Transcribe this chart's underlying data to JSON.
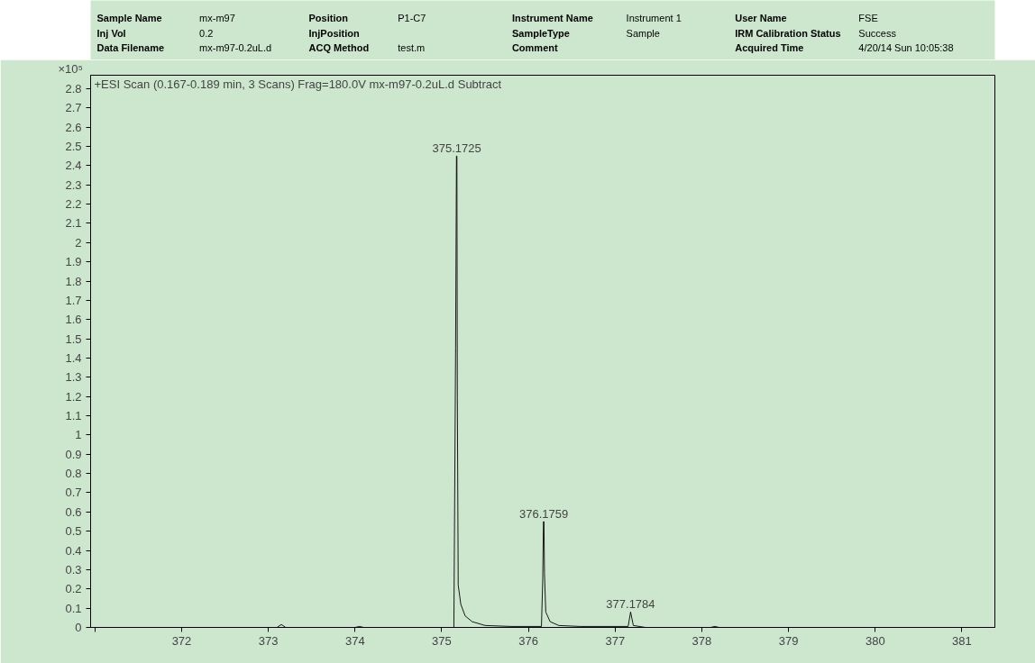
{
  "chart_data": {
    "type": "line",
    "title": "+ESI Scan (0.167-0.189 min, 3 Scans) Frag=180.0V mx-m97-0.2uL.d  Subtract",
    "ylabel": "×10⁵",
    "x": [
      370.95,
      373.1,
      373.15,
      373.2,
      374.0,
      374.05,
      374.1,
      375.14,
      375.16,
      375.17,
      375.1725,
      375.175,
      375.18,
      375.19,
      375.22,
      375.27,
      375.35,
      375.5,
      375.8,
      376.15,
      376.165,
      376.173,
      376.1759,
      376.179,
      376.185,
      376.2,
      376.25,
      376.35,
      376.6,
      377.15,
      377.1784,
      377.21,
      377.35,
      378.1,
      378.15,
      378.2,
      381.38
    ],
    "series": [
      {
        "color": "#000000",
        "values": [
          0,
          0,
          0.015,
          0,
          0,
          0.005,
          0,
          0,
          1.45,
          2.45,
          2.45,
          2.45,
          1.2,
          0.22,
          0.12,
          0.06,
          0.03,
          0.01,
          0.005,
          0.005,
          0.25,
          0.55,
          0.55,
          0.55,
          0.28,
          0.08,
          0.03,
          0.01,
          0.005,
          0.005,
          0.08,
          0.01,
          0,
          0,
          0.005,
          0,
          0
        ]
      }
    ],
    "xlim": [
      370.95,
      381.38
    ],
    "xticks": [
      {
        "value": 371,
        "label": null
      },
      372,
      373,
      374,
      375,
      376,
      377,
      378,
      379,
      380,
      381
    ],
    "ylim": [
      0,
      2.87
    ],
    "yticks": [
      0,
      0.1,
      0.2,
      0.3,
      0.4,
      0.5,
      0.6,
      0.7,
      0.8,
      0.9,
      1,
      1.1,
      1.2,
      1.3,
      1.4,
      1.5,
      1.6,
      1.7,
      1.8,
      1.9,
      2,
      2.1,
      2.2,
      2.3,
      2.4,
      2.5,
      2.6,
      2.7,
      2.8
    ],
    "grid": false,
    "marker": "none",
    "line_style": "solid",
    "annotations": [
      "Sample Name",
      "mx-m97",
      "Position",
      "P1-C7",
      "Instrument Name",
      "Instrument 1",
      "User Name",
      "FSE",
      "Inj Vol",
      "0.2",
      "InjPosition",
      "SampleType",
      "Sample",
      "IRM Calibration Status",
      "Success",
      "Data Filename",
      "mx-m97-0.2uL.d",
      "ACQ Method",
      "test.m",
      "Comment",
      "Acquired Time",
      "4/20/14 Sun 10:05:38",
      {
        "text": "375.1725",
        "x": 375.1725,
        "y": 2.45
      },
      {
        "text": "376.1759",
        "x": 376.1759,
        "y": 0.55
      },
      {
        "text": "377.1784",
        "x": 377.1784,
        "y": 0.08
      }
    ]
  }
}
